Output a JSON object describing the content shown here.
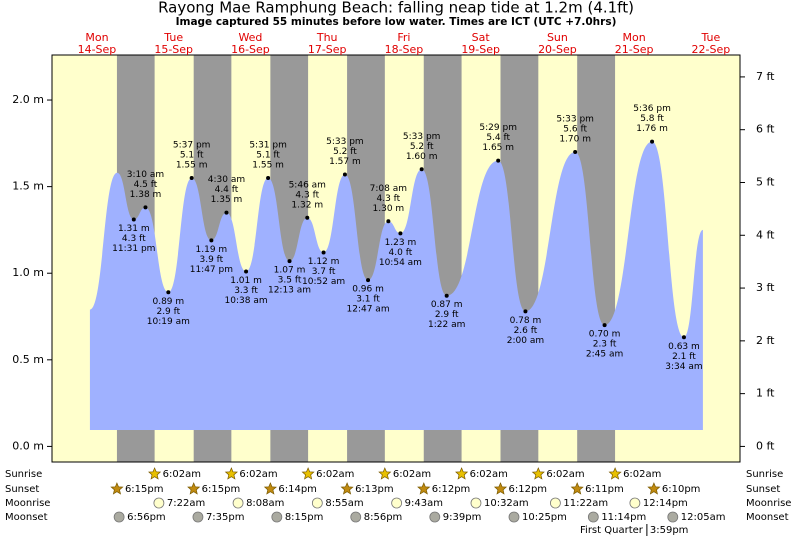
{
  "chart_data": {
    "type": "area",
    "title": "Rayong Mae Ramphung Beach: falling  neap tide at 1.2m (4.1ft)",
    "subtitle": "Image captured 55 minutes before low water. Times are ICT (UTC +7.0hrs)",
    "days": [
      {
        "name": "Mon",
        "date": "14-Sep"
      },
      {
        "name": "Tue",
        "date": "15-Sep"
      },
      {
        "name": "Wed",
        "date": "16-Sep"
      },
      {
        "name": "Thu",
        "date": "17-Sep"
      },
      {
        "name": "Fri",
        "date": "18-Sep"
      },
      {
        "name": "Sat",
        "date": "19-Sep"
      },
      {
        "name": "Sun",
        "date": "20-Sep"
      },
      {
        "name": "Mon",
        "date": "21-Sep"
      },
      {
        "name": "Tue",
        "date": "22-Sep"
      }
    ],
    "xlim": [
      -2.06,
      213.1
    ],
    "ylim": [
      -0.09,
      2.26
    ],
    "y2lim": [
      -0.295,
      7.415
    ],
    "yticks": [
      {
        "value": 0,
        "label": "0.0 m"
      },
      {
        "value": 0.5,
        "label": "0.5 m"
      },
      {
        "value": 1,
        "label": "1.0 m"
      },
      {
        "value": 1.5,
        "label": "1.5 m"
      },
      {
        "value": 2,
        "label": "2.0 m"
      }
    ],
    "y2ticks": [
      {
        "value": 0,
        "label": "0 ft"
      },
      {
        "value": 1,
        "label": "1 ft"
      },
      {
        "value": 2,
        "label": "2 ft"
      },
      {
        "value": 3,
        "label": "3 ft"
      },
      {
        "value": 4,
        "label": "4 ft"
      },
      {
        "value": 5,
        "label": "5 ft"
      },
      {
        "value": 6,
        "label": "6 ft"
      },
      {
        "value": 7,
        "label": "7 ft"
      }
    ],
    "x": [
      9.8,
      18.3,
      23.52,
      27.17,
      34.32,
      41.62,
      47.78,
      52.5,
      58.63,
      65.52,
      72.22,
      77.77,
      82.87,
      89.55,
      96.78,
      103.13,
      106.9,
      113.55,
      121.37,
      137.48,
      146.0,
      161.55,
      170.75,
      185.6,
      195.57,
      201.5
    ],
    "series": [
      {
        "color": "#9fb1ff",
        "values": [
          0.79,
          1.58,
          1.31,
          1.38,
          0.89,
          1.55,
          1.19,
          1.35,
          1.01,
          1.55,
          1.07,
          1.32,
          1.12,
          1.57,
          0.96,
          1.3,
          1.23,
          1.6,
          0.87,
          1.65,
          0.78,
          1.7,
          0.7,
          1.76,
          0.63,
          1.25
        ],
        "value_labels": [
          null,
          null,
          "1.31 m",
          "1.38 m",
          "0.89 m",
          "1.55 m",
          "1.19 m",
          "1.35 m",
          "1.01 m",
          "1.55 m",
          "1.07 m",
          "1.32 m",
          "1.12 m",
          "1.57 m",
          "0.96 m",
          "1.30 m",
          "1.23 m",
          "1.60 m",
          "0.87 m",
          "1.65 m",
          "0.78 m",
          "1.70 m",
          "0.70 m",
          "1.76 m",
          "0.63 m",
          null
        ],
        "ft_labels": [
          null,
          null,
          "4.3 ft",
          "4.5 ft",
          "2.9 ft",
          "5.1 ft",
          "3.9 ft",
          "4.4 ft",
          "3.3 ft",
          "5.1 ft",
          "3.5 ft",
          "4.3 ft",
          "3.7 ft",
          "5.2 ft",
          "3.1 ft",
          "4.3 ft",
          "4.0 ft",
          "5.2 ft",
          "2.9 ft",
          "5.4 ft",
          "2.6 ft",
          "5.6 ft",
          "2.3 ft",
          "5.8 ft",
          "2.1 ft",
          null
        ],
        "time_labels": [
          null,
          null,
          "11:31 pm",
          "3:10 am",
          "10:19 am",
          "5:37 pm",
          "11:47 pm",
          "4:30 am",
          "10:38 am",
          "5:31 pm",
          "12:13 am",
          "5:46 am",
          "10:52 am",
          "5:33 pm",
          "12:47 am",
          "7:08 am",
          "10:54 am",
          "5:33 pm",
          "1:22 am",
          "5:29 pm",
          "2:00 am",
          "5:33 pm",
          "2:45 am",
          "5:36 pm",
          "3:34 am",
          null
        ]
      }
    ],
    "night_color": "#999999",
    "day_color": "#ffffcc",
    "events": [
      {
        "name": "Sunrise",
        "times": [
          "6:02am",
          "6:02am",
          "6:02am",
          "6:02am",
          "6:02am",
          "6:02am",
          "6:02am"
        ],
        "x": [
          30.03,
          54.03,
          78.03,
          102.03,
          126.03,
          150.03,
          174.03
        ]
      },
      {
        "name": "Sunset",
        "times": [
          "6:15pm",
          "6:15pm",
          "6:14pm",
          "6:13pm",
          "6:12pm",
          "6:12pm",
          "6:11pm",
          "6:10pm"
        ],
        "x": [
          18.25,
          42.25,
          66.23,
          90.22,
          114.2,
          138.2,
          162.18,
          186.17
        ]
      },
      {
        "name": "Moonrise",
        "times": [
          "7:22am",
          "8:08am",
          "8:55am",
          "9:43am",
          "10:32am",
          "11:22am",
          "12:14pm"
        ],
        "x": [
          31.37,
          56.13,
          80.92,
          105.72,
          130.53,
          155.37,
          180.23
        ]
      },
      {
        "name": "Moonset",
        "times": [
          "6:56pm",
          "7:35pm",
          "8:15pm",
          "8:56pm",
          "9:39pm",
          "10:25pm",
          "11:14pm",
          "12:05am"
        ],
        "x": [
          18.93,
          43.58,
          68.25,
          92.93,
          117.65,
          142.42,
          167.23,
          192.08
        ]
      }
    ],
    "moon_phase": {
      "name": "First Quarter",
      "time": "3:59pm",
      "x": 183.98
    }
  }
}
